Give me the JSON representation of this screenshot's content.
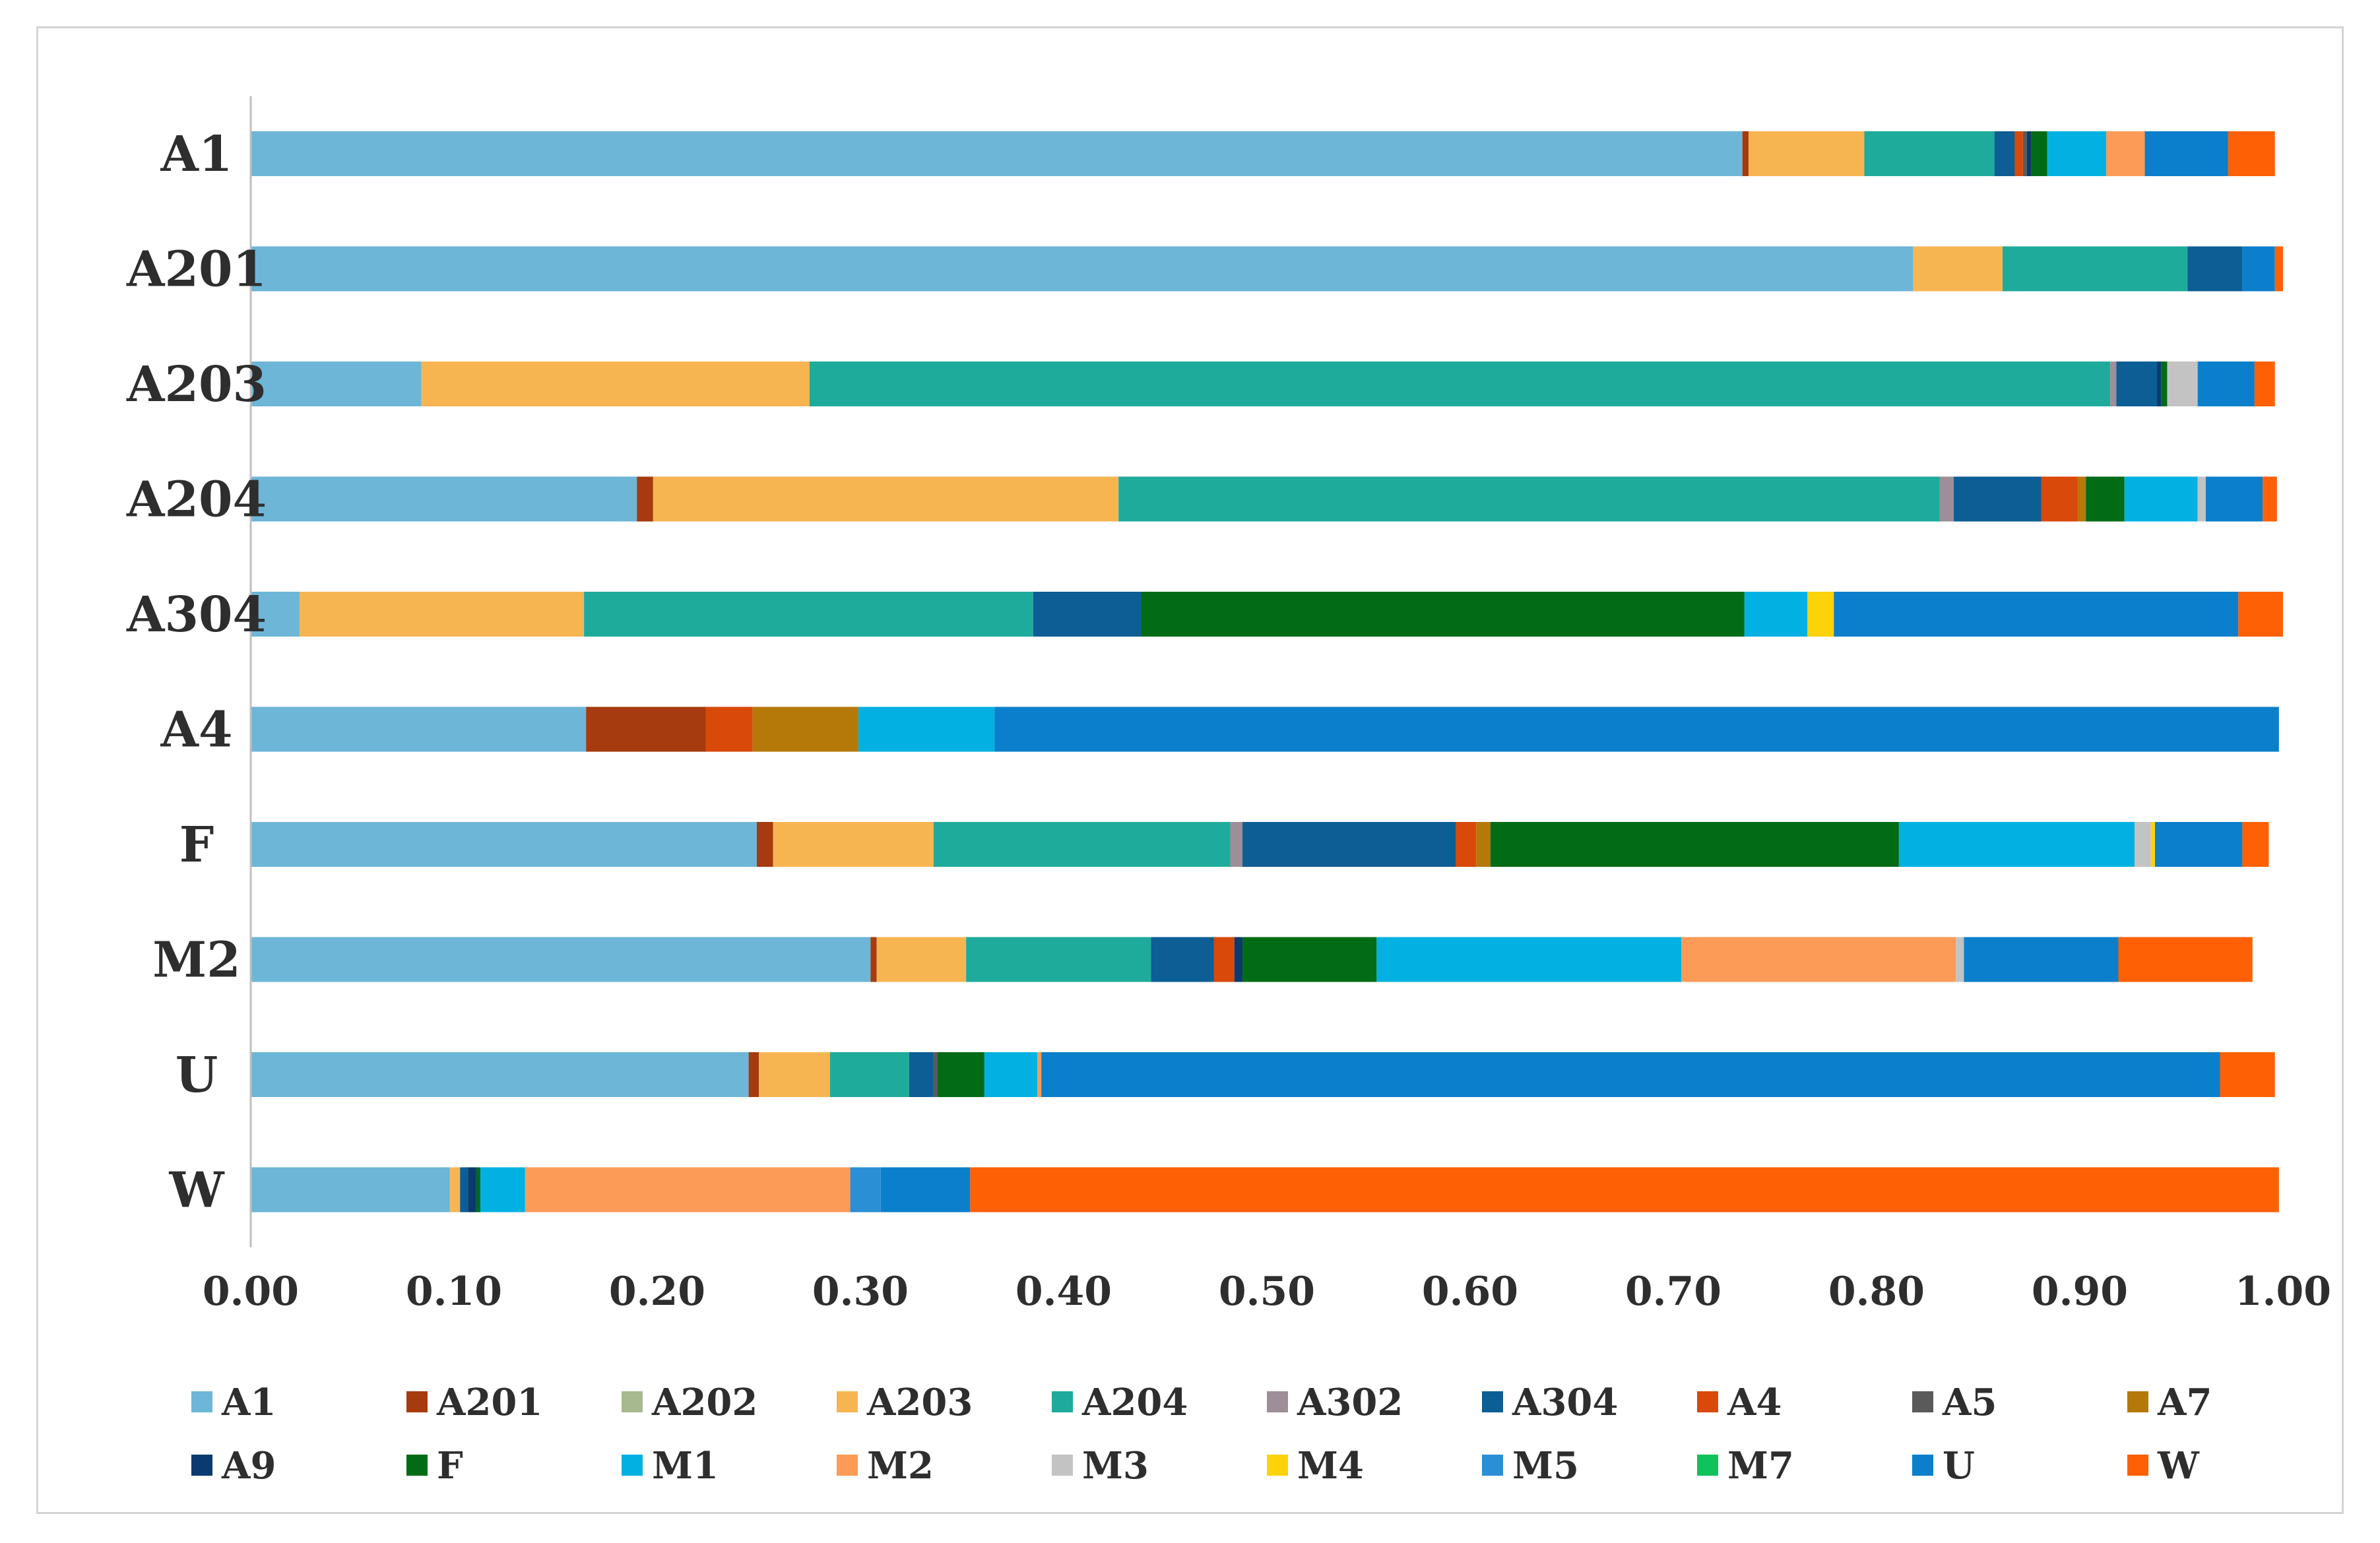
{
  "chart_data": {
    "type": "bar",
    "orientation": "horizontal",
    "stacked": true,
    "title": "",
    "xlabel": "",
    "ylabel": "",
    "xlim": [
      0,
      1
    ],
    "x_ticks": [
      "0.00",
      "0.10",
      "0.20",
      "0.30",
      "0.40",
      "0.50",
      "0.60",
      "0.70",
      "0.80",
      "0.90",
      "1.00"
    ],
    "grid": false,
    "legend_position": "bottom",
    "categories": [
      "A1",
      "A201",
      "A203",
      "A204",
      "A304",
      "A4",
      "F",
      "M2",
      "U",
      "W"
    ],
    "series": [
      {
        "name": "A1",
        "color": "#6db6d7",
        "values": [
          0.734,
          0.818,
          0.084,
          0.19,
          0.024,
          0.165,
          0.249,
          0.305,
          0.245,
          0.098
        ]
      },
      {
        "name": "A201",
        "color": "#a53b0e",
        "values": [
          0.003,
          0.0,
          0.0,
          0.008,
          0.0,
          0.059,
          0.008,
          0.003,
          0.005,
          0.0
        ]
      },
      {
        "name": "A202",
        "color": "#a6b98f",
        "values": [
          0.0,
          0.0,
          0.0,
          0.0,
          0.0,
          0.0,
          0.0,
          0.0,
          0.0,
          0.0
        ]
      },
      {
        "name": "A203",
        "color": "#f7b552",
        "values": [
          0.057,
          0.044,
          0.191,
          0.229,
          0.14,
          0.0,
          0.079,
          0.044,
          0.035,
          0.005
        ]
      },
      {
        "name": "A204",
        "color": "#1eab9b",
        "values": [
          0.064,
          0.091,
          0.64,
          0.404,
          0.221,
          0.0,
          0.146,
          0.091,
          0.039,
          0.0
        ]
      },
      {
        "name": "A302",
        "color": "#9e8e97",
        "values": [
          0.0,
          0.0,
          0.003,
          0.007,
          0.0,
          0.0,
          0.006,
          0.0,
          0.0,
          0.0
        ]
      },
      {
        "name": "A304",
        "color": "#0c5e95",
        "values": [
          0.01,
          0.027,
          0.02,
          0.043,
          0.053,
          0.0,
          0.105,
          0.031,
          0.012,
          0.004
        ]
      },
      {
        "name": "A4",
        "color": "#d8490a",
        "values": [
          0.004,
          0.0,
          0.0,
          0.018,
          0.0,
          0.023,
          0.01,
          0.01,
          0.0,
          0.0
        ]
      },
      {
        "name": "A5",
        "color": "#5a5a5a",
        "values": [
          0.002,
          0.0,
          0.0,
          0.0,
          0.0,
          0.0,
          0.0,
          0.0,
          0.002,
          0.0
        ]
      },
      {
        "name": "A7",
        "color": "#b5790a",
        "values": [
          0.0,
          0.0,
          0.0,
          0.004,
          0.0,
          0.052,
          0.007,
          0.0,
          0.0,
          0.0
        ]
      },
      {
        "name": "A9",
        "color": "#0b3a6e",
        "values": [
          0.002,
          0.0,
          0.002,
          0.0,
          0.0,
          0.0,
          0.0,
          0.004,
          0.0,
          0.004
        ]
      },
      {
        "name": "F",
        "color": "#016b16",
        "values": [
          0.008,
          0.0,
          0.003,
          0.019,
          0.297,
          0.0,
          0.201,
          0.066,
          0.023,
          0.002
        ]
      },
      {
        "name": "M1",
        "color": "#02b1e1",
        "values": [
          0.029,
          0.0,
          0.0,
          0.036,
          0.031,
          0.067,
          0.116,
          0.15,
          0.026,
          0.022
        ]
      },
      {
        "name": "M2",
        "color": "#fb9b57",
        "values": [
          0.019,
          0.0,
          0.0,
          0.0,
          0.0,
          0.0,
          0.0,
          0.135,
          0.002,
          0.16
        ]
      },
      {
        "name": "M3",
        "color": "#c3c3c3",
        "values": [
          0.0,
          0.0,
          0.015,
          0.004,
          0.0,
          0.0,
          0.008,
          0.004,
          0.0,
          0.0
        ]
      },
      {
        "name": "M4",
        "color": "#fcd20a",
        "values": [
          0.0,
          0.0,
          0.0,
          0.0,
          0.013,
          0.0,
          0.002,
          0.0,
          0.0,
          0.0
        ]
      },
      {
        "name": "M5",
        "color": "#2b8fd6",
        "values": [
          0.0,
          0.0,
          0.0,
          0.0,
          0.0,
          0.0,
          0.0,
          0.0,
          0.0,
          0.015
        ]
      },
      {
        "name": "M7",
        "color": "#11c25a",
        "values": [
          0.0,
          0.0,
          0.0,
          0.0,
          0.0,
          0.0,
          0.0,
          0.0,
          0.0,
          0.0
        ]
      },
      {
        "name": "U",
        "color": "#0b7fcb",
        "values": [
          0.041,
          0.016,
          0.028,
          0.028,
          0.199,
          0.632,
          0.043,
          0.076,
          0.58,
          0.044
        ]
      },
      {
        "name": "W",
        "color": "#fd6005",
        "values": [
          0.023,
          0.004,
          0.01,
          0.007,
          0.022,
          0.0,
          0.013,
          0.066,
          0.027,
          0.644
        ]
      }
    ]
  }
}
